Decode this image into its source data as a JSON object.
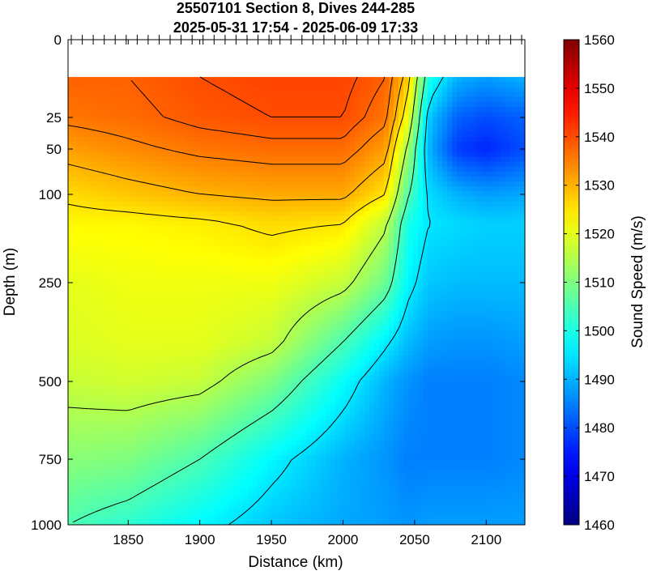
{
  "chart_data": {
    "type": "heatmap",
    "title": [
      "25507101 Section 8, Dives 244-285",
      "2025-05-31 17:54 - 2025-06-09 17:33"
    ],
    "xlabel": "Distance (km)",
    "ylabel": "Depth (m)",
    "colorbar_label": "Sound Speed (m/s)",
    "xlim": [
      1808,
      2127
    ],
    "x_ticks": [
      1850,
      1900,
      1950,
      2000,
      2050,
      2100
    ],
    "y_ticks": [
      0,
      25,
      50,
      100,
      250,
      500,
      750,
      1000
    ],
    "y_scale": "nonlinear (stretched near surface)",
    "y_reversed": true,
    "colorbar_ticks": [
      1460,
      1470,
      1480,
      1490,
      1500,
      1510,
      1520,
      1530,
      1540,
      1550,
      1560
    ],
    "clim": [
      1460,
      1560
    ],
    "colormap": "jet",
    "data_top_depth_m": 12,
    "dive_marks_at_top": true,
    "contour_lines": true,
    "grid": false,
    "field_rows": [
      {
        "depth": 12,
        "x": [
          1808,
          1850,
          1900,
          1950,
          2000,
          2030,
          2045,
          2060,
          2080,
          2100,
          2127
        ],
        "speed": [
          1538,
          1538,
          1540,
          1541,
          1541,
          1538,
          1528,
          1500,
          1490,
          1488,
          1490
        ]
      },
      {
        "depth": 25,
        "x": [
          1808,
          1850,
          1900,
          1950,
          2000,
          2030,
          2045,
          2060,
          2080,
          2100,
          2127
        ],
        "speed": [
          1536,
          1537,
          1539,
          1540,
          1540,
          1536,
          1522,
          1492,
          1482,
          1480,
          1482
        ]
      },
      {
        "depth": 50,
        "x": [
          1808,
          1850,
          1900,
          1950,
          2000,
          2030,
          2045,
          2060,
          2080,
          2100,
          2127
        ],
        "speed": [
          1532,
          1534,
          1536,
          1537,
          1537,
          1532,
          1514,
          1490,
          1478,
          1476,
          1480
        ]
      },
      {
        "depth": 100,
        "x": [
          1808,
          1850,
          1900,
          1950,
          2000,
          2030,
          2045,
          2060,
          2080,
          2100,
          2127
        ],
        "speed": [
          1526,
          1528,
          1530,
          1531,
          1531,
          1525,
          1506,
          1494,
          1490,
          1488,
          1489
        ]
      },
      {
        "depth": 150,
        "x": [
          1808,
          1850,
          1900,
          1950,
          2000,
          2030,
          2045,
          2060,
          2080,
          2100,
          2127
        ],
        "speed": [
          1523,
          1523,
          1524,
          1526,
          1525,
          1516,
          1500,
          1495,
          1494,
          1493,
          1493
        ]
      },
      {
        "depth": 250,
        "x": [
          1808,
          1850,
          1900,
          1950,
          2000,
          2030,
          2045,
          2060,
          2080,
          2100,
          2127
        ],
        "speed": [
          1520,
          1521,
          1521,
          1521,
          1517,
          1508,
          1497,
          1492,
          1491,
          1491,
          1491
        ]
      },
      {
        "depth": 400,
        "x": [
          1808,
          1850,
          1900,
          1950,
          2000,
          2030,
          2045,
          2060,
          2080,
          2100,
          2127
        ],
        "speed": [
          1519,
          1520,
          1520,
          1517,
          1505,
          1496,
          1491,
          1488,
          1487,
          1487,
          1488
        ]
      },
      {
        "depth": 500,
        "x": [
          1808,
          1850,
          1900,
          1950,
          2000,
          2030,
          2045,
          2060,
          2080,
          2100,
          2127
        ],
        "speed": [
          1517,
          1518,
          1517,
          1510,
          1498,
          1490,
          1487,
          1485,
          1485,
          1485,
          1486
        ]
      },
      {
        "depth": 750,
        "x": [
          1808,
          1850,
          1900,
          1950,
          2000,
          2030,
          2045,
          2060,
          2080,
          2100,
          2127
        ],
        "speed": [
          1511,
          1510,
          1505,
          1497,
          1490,
          1487,
          1485,
          1485,
          1485,
          1485,
          1486
        ]
      },
      {
        "depth": 1000,
        "x": [
          1808,
          1850,
          1900,
          1950,
          2000,
          2030,
          2045,
          2060,
          2080,
          2100,
          2127
        ],
        "speed": [
          1505,
          1502,
          1497,
          1492,
          1489,
          1488,
          1487,
          1488,
          1488,
          1488,
          1488
        ]
      }
    ]
  }
}
